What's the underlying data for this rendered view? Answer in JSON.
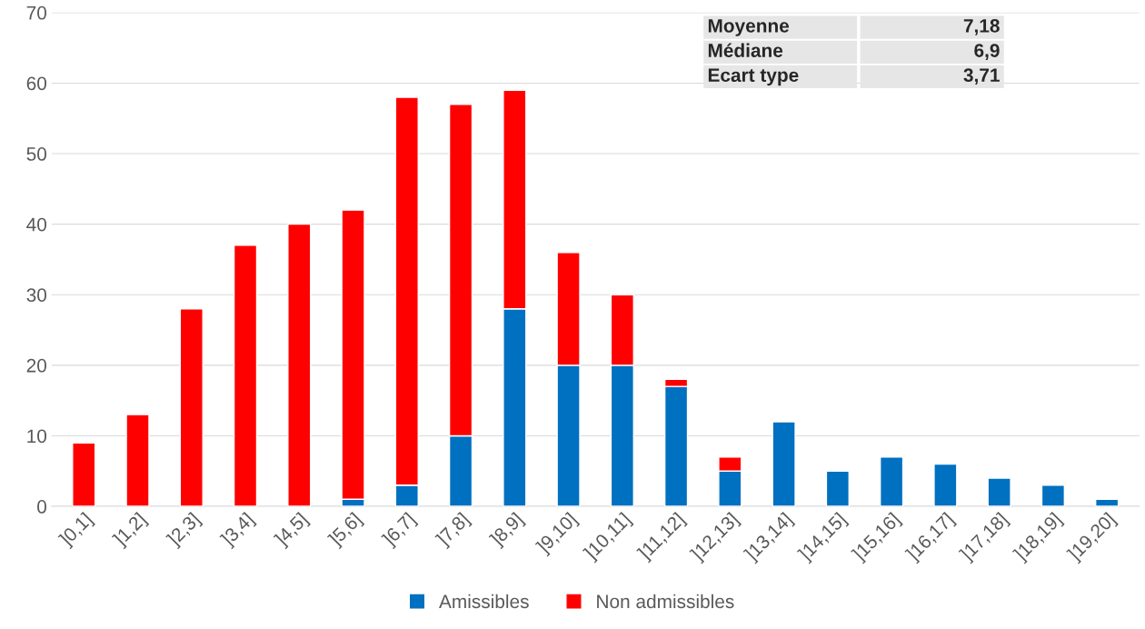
{
  "chart_data": {
    "type": "bar",
    "stacked": true,
    "categories": [
      "]0,1]",
      "]1,2]",
      "]2,3]",
      "]3,4]",
      "]4,5]",
      "]5,6]",
      "]6,7]",
      "]7,8]",
      "]8,9]",
      "]9,10]",
      "]10,11]",
      "]11,12]",
      "]12,13]",
      "]13,14]",
      "]14,15]",
      "]15,16]",
      "]16,17]",
      "]17,18]",
      "]18,19]",
      "]19,20]"
    ],
    "series": [
      {
        "name": "Amissibles",
        "color": "#0070c0",
        "values": [
          null,
          null,
          null,
          null,
          null,
          1,
          3,
          10,
          28,
          20,
          20,
          17,
          5,
          12,
          5,
          7,
          6,
          4,
          3,
          1
        ]
      },
      {
        "name": "Non admissibles",
        "color": "#ff0000",
        "values": [
          9,
          13,
          28,
          37,
          40,
          41,
          55,
          47,
          31,
          16,
          10,
          1,
          2,
          null,
          null,
          null,
          null,
          null,
          null,
          null
        ]
      }
    ],
    "ylim": [
      0,
      70
    ],
    "yticks": [
      0,
      10,
      20,
      30,
      40,
      50,
      60,
      70
    ],
    "grid": "y",
    "legend": "bottom",
    "annotations": [
      "Moyenne",
      "7,18",
      "Médiane",
      "6,9",
      "Ecart type",
      "3,71"
    ]
  }
}
